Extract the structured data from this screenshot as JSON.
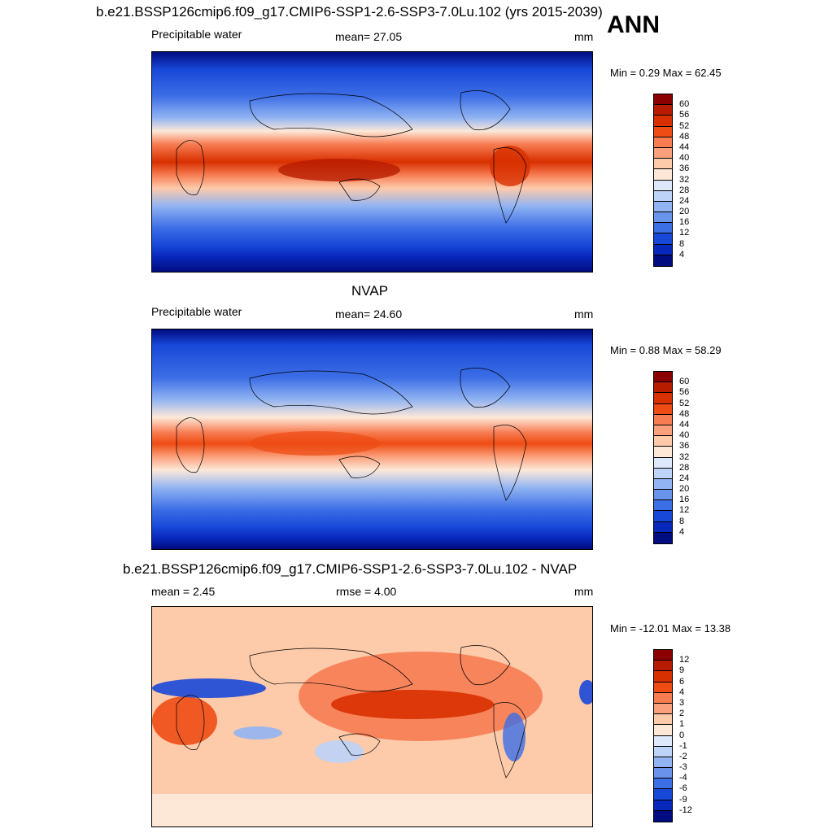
{
  "header": {
    "main_title": "b.e21.BSSP126cmip6.f09_g17.CMIP6-SSP1-2.6-SSP3-7.0Lu.102 (yrs 2015-2039)",
    "season": "ANN"
  },
  "chart_data": [
    {
      "type": "heatmap",
      "title": "",
      "left_label": "Precipitable water",
      "center_label": "mean=  27.05",
      "units": "mm",
      "min_max": "Min =   0.29 Max =  62.45",
      "colorbar_ticks": [
        "60",
        "56",
        "52",
        "48",
        "44",
        "40",
        "36",
        "32",
        "28",
        "24",
        "20",
        "16",
        "12",
        "8",
        "4"
      ],
      "colors": [
        "#8b0000",
        "#b71c00",
        "#d83000",
        "#ee4c14",
        "#f77c52",
        "#fba07c",
        "#fdcaaa",
        "#fde8d8",
        "#dde9fb",
        "#bdd3f8",
        "#92b4f2",
        "#6a94ec",
        "#3c6ee6",
        "#1848d8",
        "#0828bc",
        "#000c80"
      ]
    },
    {
      "type": "heatmap",
      "title": "NVAP",
      "left_label": "Precipitable water",
      "center_label": "mean=  24.60",
      "units": "mm",
      "min_max": "Min =   0.88 Max =  58.29",
      "colorbar_ticks": [
        "60",
        "56",
        "52",
        "48",
        "44",
        "40",
        "36",
        "32",
        "28",
        "24",
        "20",
        "16",
        "12",
        "8",
        "4"
      ],
      "colors": [
        "#8b0000",
        "#b71c00",
        "#d83000",
        "#ee4c14",
        "#f77c52",
        "#fba07c",
        "#fdcaaa",
        "#fde8d8",
        "#dde9fb",
        "#bdd3f8",
        "#92b4f2",
        "#6a94ec",
        "#3c6ee6",
        "#1848d8",
        "#0828bc",
        "#000c80"
      ]
    },
    {
      "type": "heatmap",
      "title": "b.e21.BSSP126cmip6.f09_g17.CMIP6-SSP1-2.6-SSP3-7.0Lu.102 - NVAP",
      "left_label": "mean =   2.45",
      "center_label": "rmse =   4.00",
      "units": "mm",
      "min_max": "Min = -12.01 Max =  13.38",
      "colorbar_ticks": [
        "12",
        "9",
        "6",
        "4",
        "3",
        "2",
        "1",
        "0",
        "-1",
        "-2",
        "-3",
        "-4",
        "-6",
        "-9",
        "-12"
      ],
      "colors": [
        "#8b0000",
        "#b71c00",
        "#d83000",
        "#ee4c14",
        "#f77c52",
        "#fba07c",
        "#fdcaaa",
        "#fde8d8",
        "#dde9fb",
        "#bdd3f8",
        "#92b4f2",
        "#6a94ec",
        "#3c6ee6",
        "#1848d8",
        "#0828bc",
        "#000c80"
      ]
    }
  ]
}
